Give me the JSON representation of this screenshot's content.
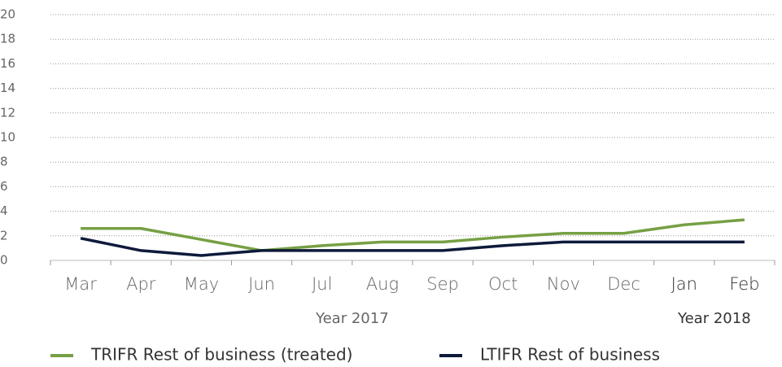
{
  "chart_data": {
    "type": "line",
    "categories": [
      "Mar",
      "Apr",
      "May",
      "Jun",
      "Jul",
      "Aug",
      "Sep",
      "Oct",
      "Nov",
      "Dec",
      "Jan",
      "Feb"
    ],
    "groups": [
      {
        "label": "Year 2017",
        "span": 10
      },
      {
        "label": "Year 2018",
        "span": 2
      }
    ],
    "series": [
      {
        "name": "TRIFR Rest of business (treated)",
        "color": "#76a044",
        "values": [
          2.6,
          2.6,
          1.7,
          0.8,
          1.2,
          1.5,
          1.5,
          1.9,
          2.2,
          2.2,
          2.9,
          3.3
        ]
      },
      {
        "name": "LTIFR Rest of business",
        "color": "#0e1a3a",
        "values": [
          1.8,
          0.8,
          0.4,
          0.8,
          0.8,
          0.8,
          0.8,
          1.2,
          1.5,
          1.5,
          1.5,
          1.5
        ]
      }
    ],
    "ylim": [
      0,
      20
    ],
    "yticks": [
      0,
      2,
      4,
      6,
      8,
      10,
      12,
      14,
      16,
      18,
      20
    ],
    "grid": true,
    "legend": "bottom"
  }
}
